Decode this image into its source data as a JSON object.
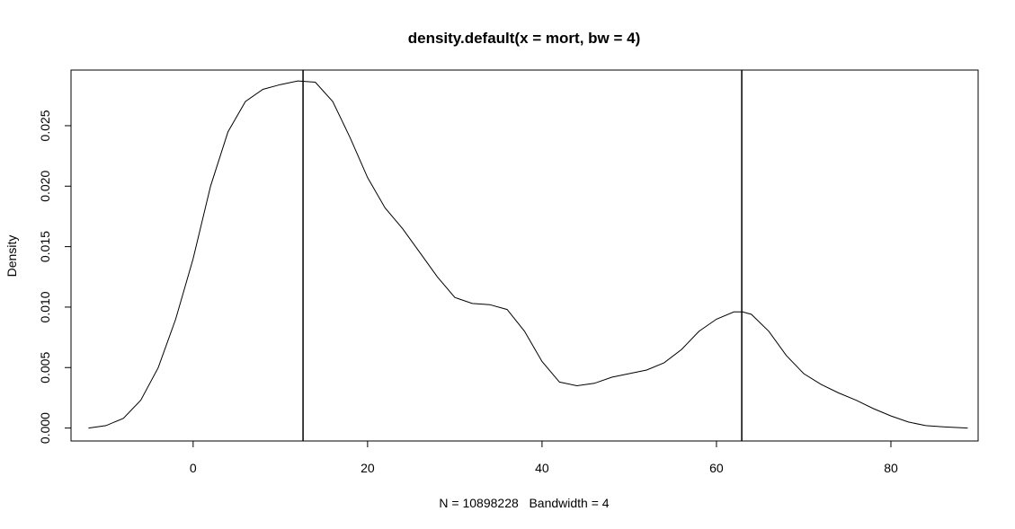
{
  "chart_data": {
    "type": "line",
    "title": "density.default(x = mort, bw = 4)",
    "xlabel": "N = 10898228   Bandwidth = 4",
    "ylabel": "Density",
    "xlim": [
      -14,
      90
    ],
    "ylim": [
      -0.00107,
      0.0296
    ],
    "x_ticks": [
      0,
      20,
      40,
      60,
      80
    ],
    "x_tick_labels": [
      "0",
      "20",
      "40",
      "60",
      "80"
    ],
    "y_ticks": [
      0,
      0.005,
      0.01,
      0.015,
      0.02,
      0.025
    ],
    "y_tick_labels": [
      "0.000",
      "0.005",
      "0.010",
      "0.015",
      "0.020",
      "0.025"
    ],
    "grid": false,
    "legend": "none",
    "series": [
      {
        "x": [
          -12,
          -10,
          -8,
          -6,
          -4,
          -2,
          0,
          2,
          4,
          6,
          8,
          10,
          12,
          14,
          16,
          18,
          20,
          22,
          24,
          26,
          28,
          30,
          32,
          34,
          36,
          38,
          40,
          42,
          44,
          46,
          48,
          50,
          52,
          54,
          56,
          58,
          60,
          62,
          63,
          64,
          66,
          68,
          70,
          72,
          74,
          76,
          78,
          80,
          82,
          84,
          86,
          88.8
        ],
        "y": [
          0.0,
          0.0002,
          0.0008,
          0.0023,
          0.005,
          0.009,
          0.014,
          0.02,
          0.0245,
          0.027,
          0.028,
          0.0284,
          0.0287,
          0.0286,
          0.027,
          0.024,
          0.0207,
          0.0182,
          0.0165,
          0.0145,
          0.0125,
          0.0108,
          0.0103,
          0.0102,
          0.0098,
          0.008,
          0.0055,
          0.0038,
          0.0035,
          0.0037,
          0.0042,
          0.0045,
          0.0048,
          0.0054,
          0.0065,
          0.008,
          0.009,
          0.0096,
          0.0096,
          0.0094,
          0.008,
          0.006,
          0.0045,
          0.0036,
          0.0029,
          0.0023,
          0.0016,
          0.001,
          0.0005,
          0.0002,
          0.0001,
          0.0
        ]
      }
    ],
    "vertical_lines": [
      12.6,
      62.9
    ],
    "line_color": "#000000"
  }
}
